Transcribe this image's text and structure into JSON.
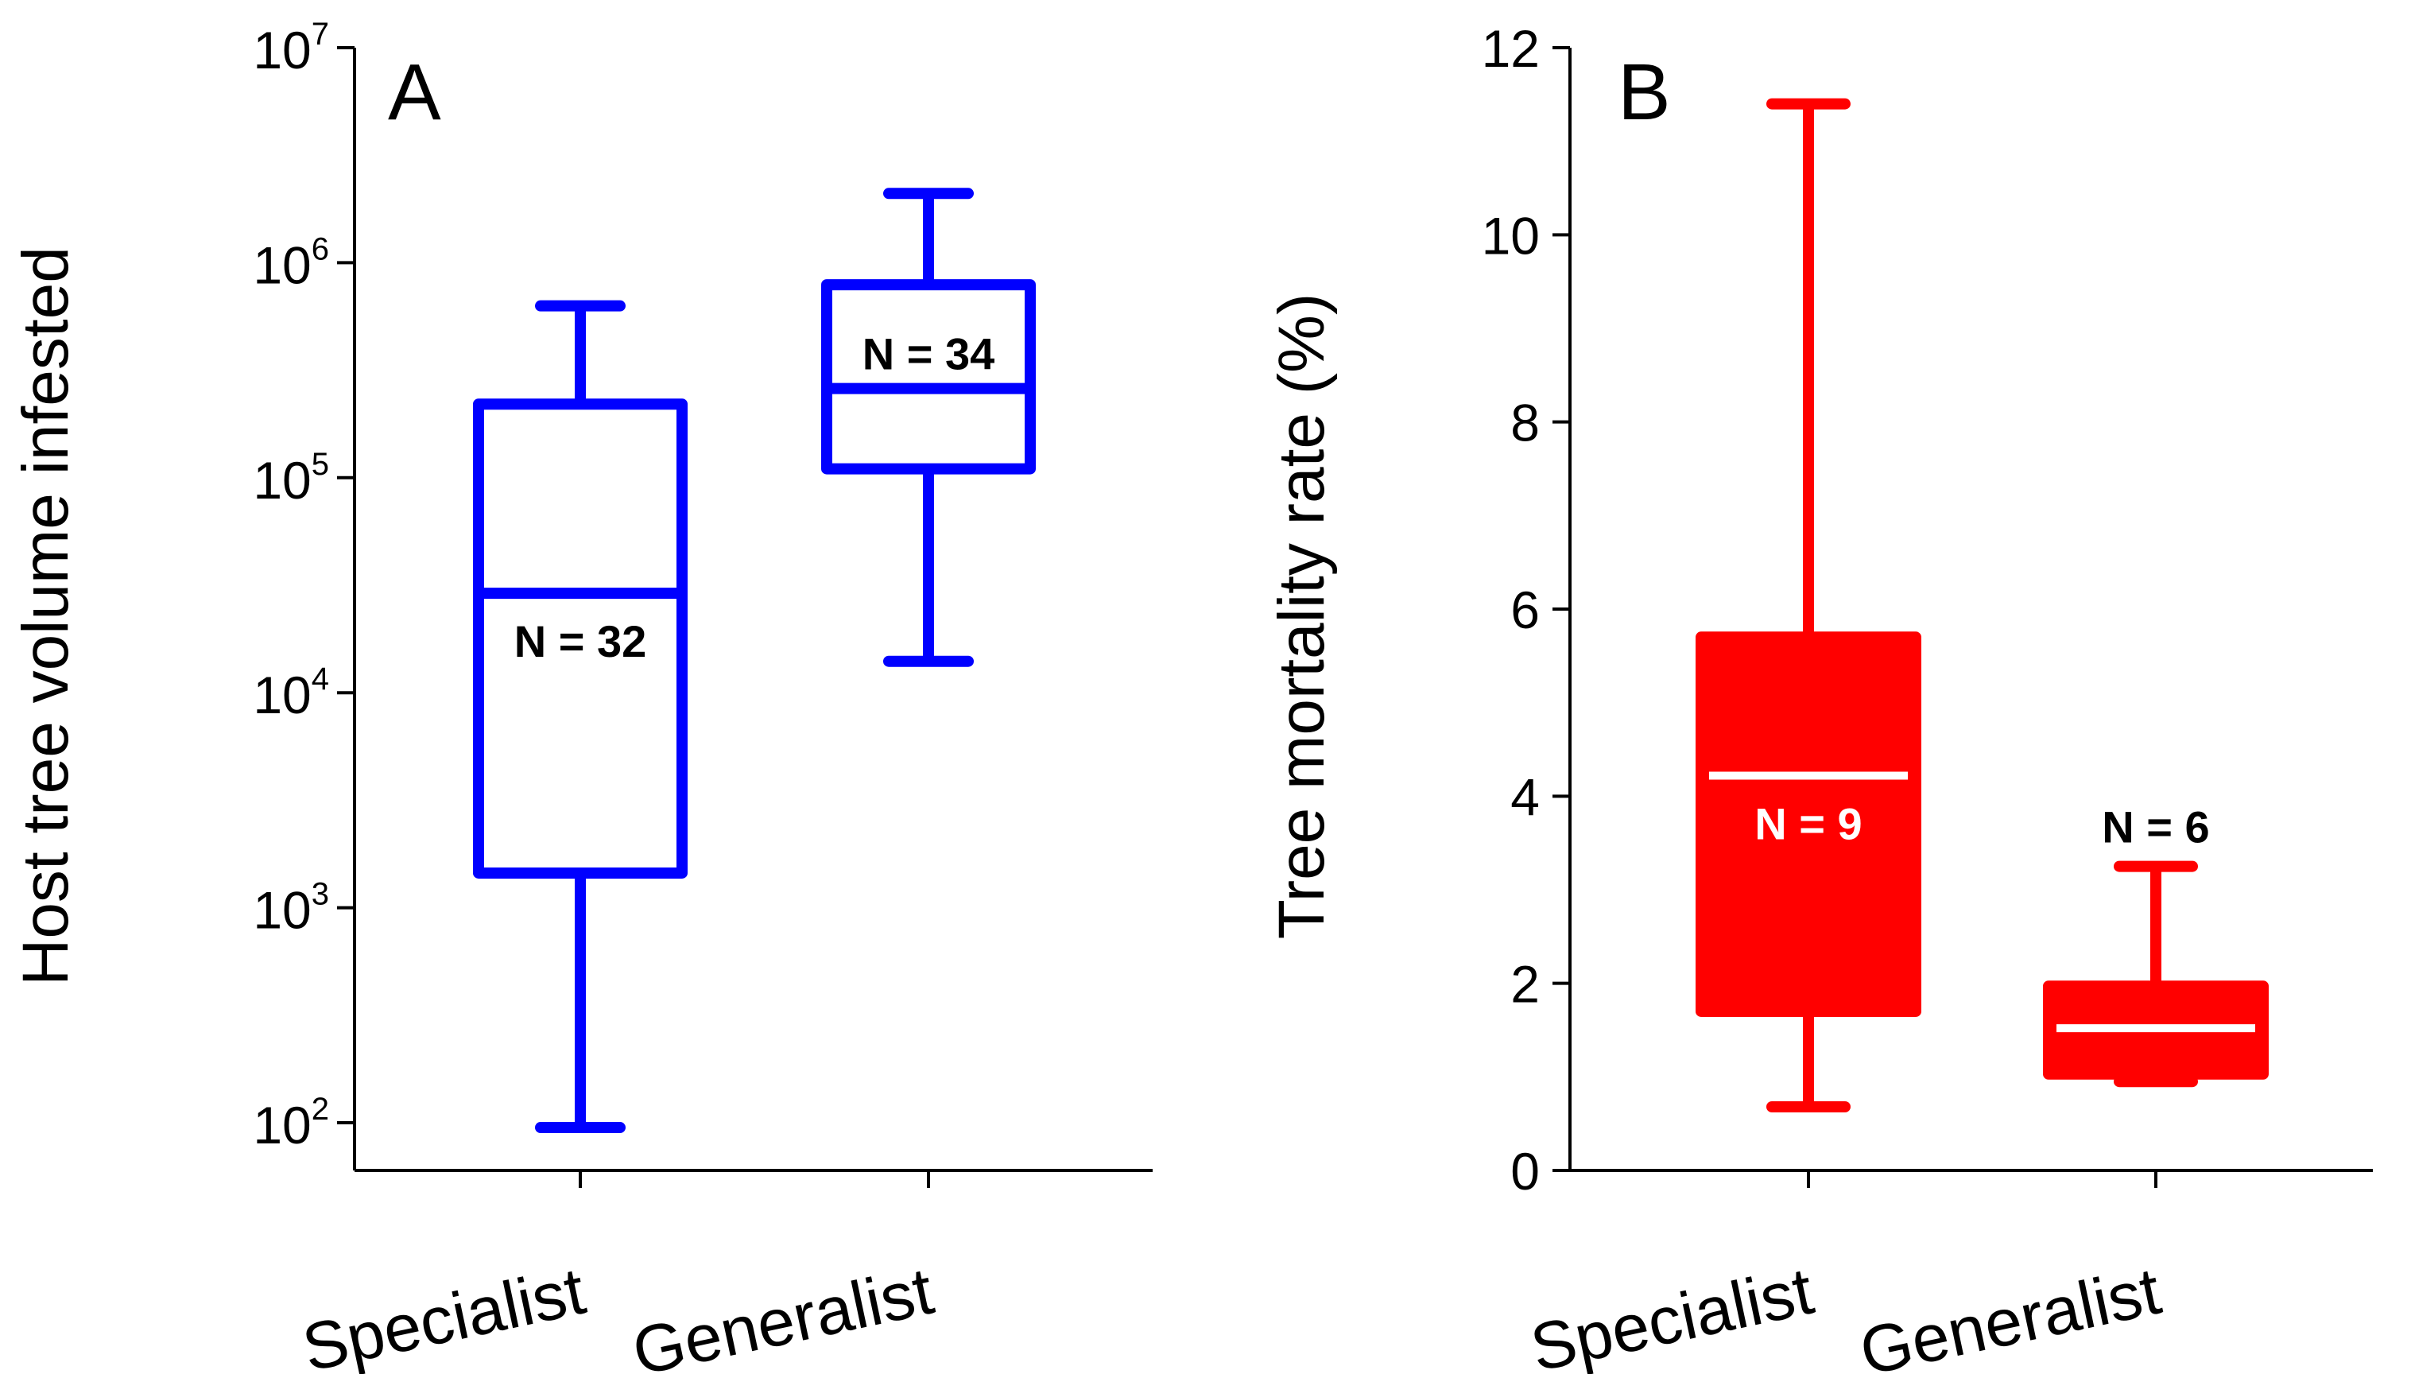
{
  "chart_data": [
    {
      "type": "box",
      "panel_label": "A",
      "ylabel": "Host tree volume infested",
      "yscale": "log",
      "ylim": [
        60,
        10000000
      ],
      "y_ticks": [
        {
          "base": "10",
          "exp": "2",
          "value": 100
        },
        {
          "base": "10",
          "exp": "3",
          "value": 1000
        },
        {
          "base": "10",
          "exp": "4",
          "value": 10000
        },
        {
          "base": "10",
          "exp": "5",
          "value": 100000
        },
        {
          "base": "10",
          "exp": "6",
          "value": 1000000
        },
        {
          "base": "10",
          "exp": "7",
          "value": 10000000
        }
      ],
      "categories": [
        "Specialist",
        "Generalist"
      ],
      "color": "#0000ff",
      "fill": "none",
      "boxes": [
        {
          "category": "Specialist",
          "whisker_low": 95,
          "q1": 1450,
          "median": 29000,
          "q3": 220000,
          "whisker_high": 630000,
          "n_label": "N = 32"
        },
        {
          "category": "Generalist",
          "whisker_low": 14000,
          "q1": 110000,
          "median": 260000,
          "q3": 790000,
          "whisker_high": 2100000,
          "n_label": "N = 34"
        }
      ]
    },
    {
      "type": "box",
      "panel_label": "B",
      "ylabel": "Tree mortality rate (%)",
      "yscale": "linear",
      "ylim": [
        0,
        12
      ],
      "y_ticks": [
        {
          "label": "0",
          "value": 0
        },
        {
          "label": "2",
          "value": 2
        },
        {
          "label": "4",
          "value": 4
        },
        {
          "label": "6",
          "value": 6
        },
        {
          "label": "8",
          "value": 8
        },
        {
          "label": "10",
          "value": 10
        },
        {
          "label": "12",
          "value": 12
        }
      ],
      "categories": [
        "Specialist",
        "Generalist"
      ],
      "color": "#ff0000",
      "fill": "#ff0000",
      "median_color": "#ffffff",
      "boxes": [
        {
          "category": "Specialist",
          "whisker_low": 0.68,
          "q1": 1.7,
          "median": 4.22,
          "q3": 5.7,
          "whisker_high": 11.4,
          "n_label": "N = 9",
          "n_label_inside": true
        },
        {
          "category": "Generalist",
          "whisker_low": 0.95,
          "q1": 1.03,
          "median": 1.52,
          "q3": 1.97,
          "whisker_high": 3.25,
          "n_label": "N = 6",
          "n_label_inside": false
        }
      ]
    }
  ]
}
